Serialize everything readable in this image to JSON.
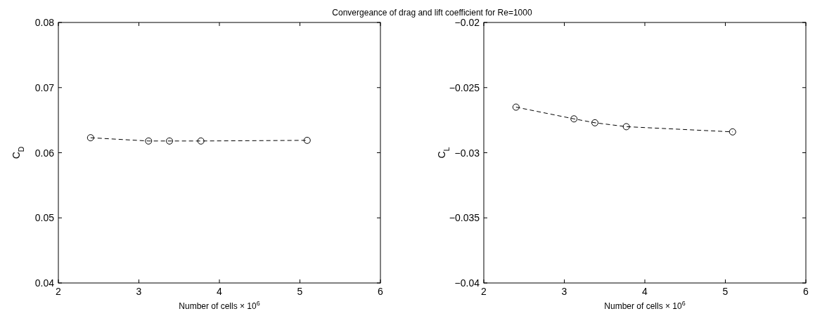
{
  "chart_data": [
    {
      "type": "line",
      "title": "Convergeance of drag and lift coefficient for Re=1000",
      "xlabel": "Number of cells × 10$^{6}$",
      "ylabel": "C$_{D}$",
      "x": [
        2.4,
        3.12,
        3.38,
        3.77,
        5.09
      ],
      "series": [
        {
          "color": "#000000",
          "values": [
            0.0623,
            0.0618,
            0.0618,
            0.0618,
            0.0619
          ]
        }
      ],
      "xlim": [
        2,
        6
      ],
      "xticks": [
        2,
        3,
        4,
        5,
        6
      ],
      "ylim": [
        0.04,
        0.08
      ],
      "yticks": [
        0.04,
        0.05,
        0.06,
        0.07,
        0.08
      ],
      "marker": "circle",
      "line_style": "dashed"
    },
    {
      "type": "line",
      "xlabel": "Number of cells × 10$^{6}$",
      "ylabel": "C$_{L}$",
      "x": [
        2.4,
        3.12,
        3.38,
        3.77,
        5.09
      ],
      "series": [
        {
          "color": "#000000",
          "values": [
            -0.0265,
            -0.0274,
            -0.0277,
            -0.028,
            -0.0284
          ]
        }
      ],
      "xlim": [
        2,
        6
      ],
      "xticks": [
        2,
        3,
        4,
        5,
        6
      ],
      "ylim": [
        -0.04,
        -0.02
      ],
      "yticks": [
        {
          "value": -0.04,
          "label": "−0.04"
        },
        {
          "value": -0.035,
          "label": "−0.035"
        },
        {
          "value": -0.03,
          "label": "−0.03"
        },
        {
          "value": -0.025,
          "label": "−0.025"
        },
        {
          "value": -0.02,
          "label": "−0.02"
        }
      ],
      "marker": "circle",
      "line_style": "dashed"
    }
  ]
}
